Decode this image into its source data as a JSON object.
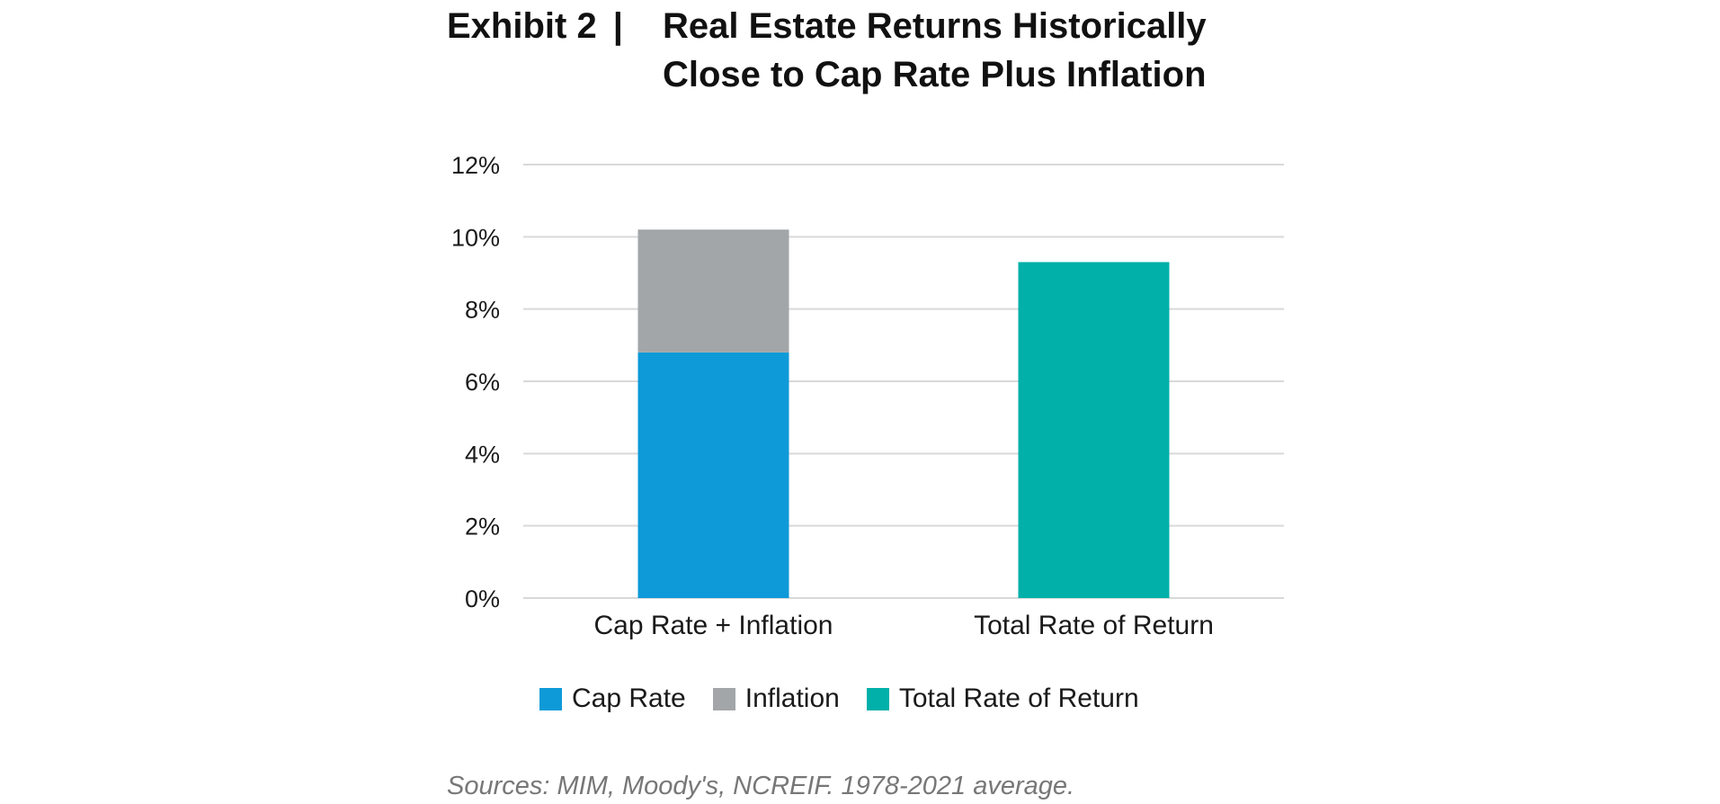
{
  "title": {
    "exhibit": "Exhibit 2",
    "separator": "|",
    "line1": "Real Estate Returns Historically",
    "line2": "Close to Cap Rate Plus Inflation"
  },
  "source": "Sources: MIM, Moody's, NCREIF. 1978-2021 average.",
  "colors": {
    "cap_rate": "#0e9ad8",
    "inflation": "#a2a6a9",
    "total_return": "#00b0a9",
    "grid": "#d9d9d9"
  },
  "chart_data": {
    "type": "bar",
    "stacked": true,
    "categories": [
      "Cap Rate + Inflation",
      "Total Rate of Return"
    ],
    "series": [
      {
        "name": "Cap Rate",
        "values": [
          6.8,
          0
        ],
        "color": "#0e9ad8"
      },
      {
        "name": "Inflation",
        "values": [
          3.4,
          0
        ],
        "color": "#a2a6a9"
      },
      {
        "name": "Total Rate of Return",
        "values": [
          0,
          9.3
        ],
        "color": "#00b0a9"
      }
    ],
    "ylim": [
      0,
      12
    ],
    "yticks": [
      0,
      2,
      4,
      6,
      8,
      10,
      12
    ],
    "ytick_labels": [
      "0%",
      "2%",
      "4%",
      "6%",
      "8%",
      "10%",
      "12%"
    ],
    "grid": true,
    "legend_position": "bottom"
  }
}
